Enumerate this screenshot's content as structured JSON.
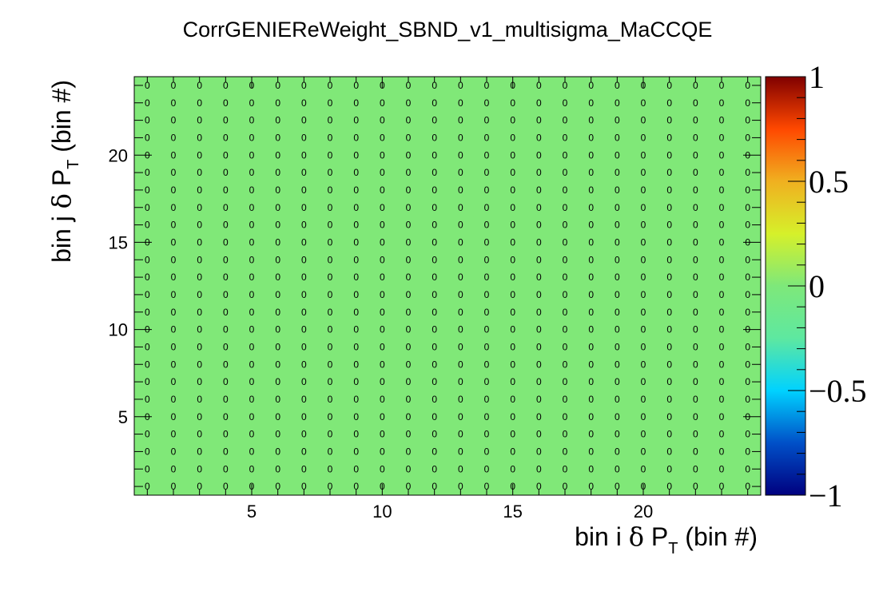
{
  "chart_data": {
    "type": "heatmap",
    "title": "CorrGENIEReWeight_SBND_v1_multisigma_MaCCQE",
    "xlabel": {
      "prefix": "bin i ",
      "symbol": "δ",
      "var": " P",
      "sub": "T",
      "suffix": " (bin #)"
    },
    "ylabel": {
      "prefix": "bin j ",
      "symbol": "δ",
      "var": " P",
      "sub": "T",
      "suffix": " (bin #)"
    },
    "xlim": [
      0.5,
      24.5
    ],
    "ylim": [
      0.5,
      24.5
    ],
    "nx": 24,
    "ny": 24,
    "x_ticks": [
      "5",
      "10",
      "15",
      "20"
    ],
    "y_ticks": [
      "5",
      "10",
      "15",
      "20"
    ],
    "cell_value": 0,
    "cell_label": "0",
    "zlim": [
      -1,
      1
    ],
    "colorbar_ticks": [
      "1",
      "0.5",
      "0",
      "−0.5",
      "−1"
    ],
    "colorbar_stops": [
      "#00007f",
      "#0050c8",
      "#00d2ff",
      "#5ee8a0",
      "#7ee87a",
      "#d6f02a",
      "#f0b020",
      "#ff4800",
      "#800000"
    ],
    "cell_color": "#80e878"
  }
}
